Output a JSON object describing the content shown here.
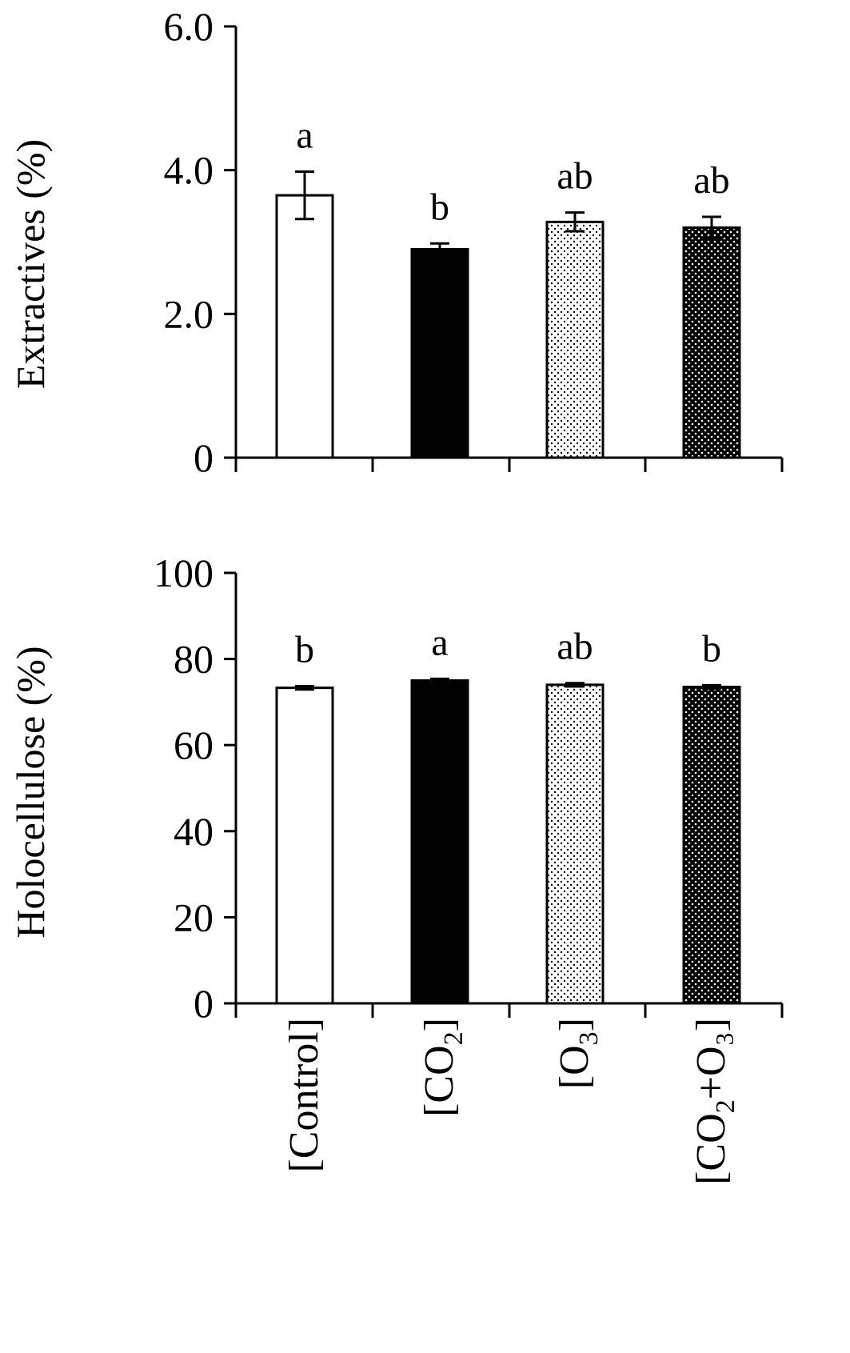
{
  "chart_data": [
    {
      "type": "bar",
      "panel": "top",
      "ylabel": "Extractives (%)",
      "ylim": [
        0,
        6.0
      ],
      "yticks": [
        "0",
        "2.0",
        "4.0",
        "6.0"
      ],
      "ytick_values": [
        0,
        2,
        4,
        6
      ],
      "categories": [
        "[Control]",
        "[CO2]",
        "[O3]",
        "[CO2+O3]"
      ],
      "values": [
        3.65,
        2.9,
        3.28,
        3.2
      ],
      "errors": [
        0.33,
        0.08,
        0.13,
        0.15
      ],
      "significance": [
        "a",
        "b",
        "ab",
        "ab"
      ],
      "fills": [
        "white",
        "black",
        "light-dots",
        "dark-dots"
      ],
      "grid": false
    },
    {
      "type": "bar",
      "panel": "bottom",
      "ylabel": "Holocellulose (%)",
      "ylim": [
        0,
        100
      ],
      "yticks": [
        "0",
        "20",
        "40",
        "60",
        "80",
        "100"
      ],
      "ytick_values": [
        0,
        20,
        40,
        60,
        80,
        100
      ],
      "categories": [
        "[Control]",
        "[CO2]",
        "[O3]",
        "[CO2+O3]"
      ],
      "values": [
        73.3,
        75.0,
        74.0,
        73.5
      ],
      "errors": [
        0.4,
        0.4,
        0.4,
        0.4
      ],
      "significance": [
        "b",
        "a",
        "ab",
        "b"
      ],
      "fills": [
        "white",
        "black",
        "light-dots",
        "dark-dots"
      ],
      "grid": false
    }
  ],
  "category_labels": [
    {
      "pre": "[Control]",
      "sub": "",
      "post": ""
    },
    {
      "pre": "[CO",
      "sub": "2",
      "post": "]"
    },
    {
      "pre": "[O",
      "sub": "3",
      "post": "]"
    },
    {
      "pre": "[CO",
      "sub": "2",
      "post": "+O₃]"
    }
  ],
  "colors": {
    "axis": "#000000",
    "bar_outline": "#000000"
  }
}
